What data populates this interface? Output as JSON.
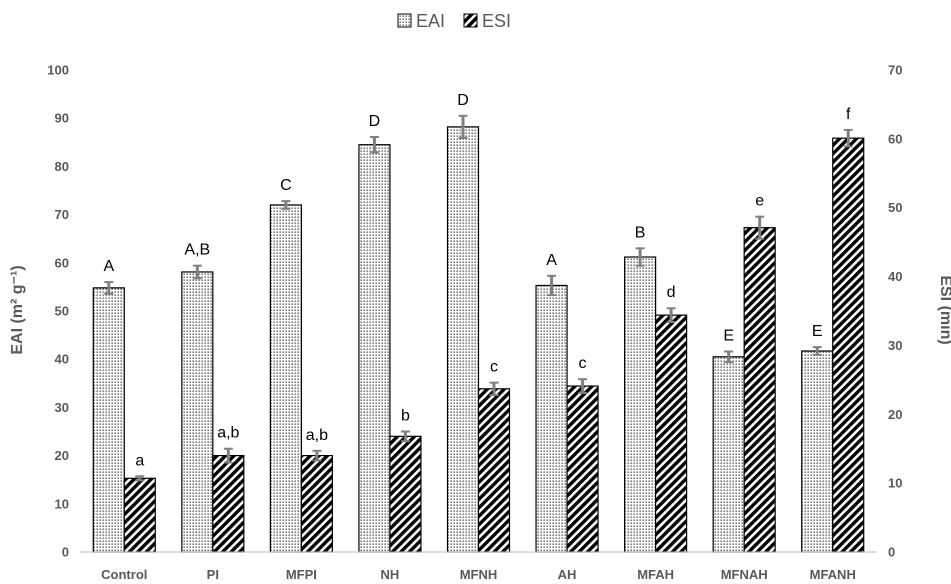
{
  "chart_data": {
    "type": "bar",
    "categories": [
      "Control",
      "PI",
      "MFPI",
      "NH",
      "MFNH",
      "AH",
      "MFAH",
      "MFNAH",
      "MFANH"
    ],
    "series": [
      {
        "name": "EAI",
        "axis": "left",
        "values": [
          54.8,
          58.1,
          72.0,
          84.5,
          88.2,
          55.3,
          61.2,
          40.5,
          41.7
        ],
        "errors": [
          1.2,
          1.3,
          0.8,
          1.6,
          2.3,
          2.0,
          1.8,
          1.1,
          0.8
        ],
        "labels": [
          "A",
          "A,B",
          "C",
          "D",
          "D",
          "A",
          "B",
          "E",
          "E"
        ]
      },
      {
        "name": "ESI",
        "axis": "right",
        "values": [
          10.7,
          14.0,
          14.0,
          16.8,
          23.7,
          24.1,
          34.4,
          47.1,
          60.1
        ],
        "errors": [
          0.3,
          1.0,
          0.7,
          0.7,
          0.9,
          1.0,
          1.0,
          1.6,
          1.2
        ],
        "labels": [
          "a",
          "a,b",
          "a,b",
          "b",
          "c",
          "c",
          "d",
          "e",
          "f"
        ]
      }
    ],
    "ylabel_left": "EAI (m² g⁻¹)",
    "ylabel_right": "ESI (min)",
    "ylim_left": [
      0,
      100
    ],
    "ylim_right": [
      0,
      70
    ],
    "yticks_left": [
      0,
      10,
      20,
      30,
      40,
      50,
      60,
      70,
      80,
      90,
      100
    ],
    "yticks_right": [
      0,
      10,
      20,
      30,
      40,
      50,
      60,
      70
    ],
    "legend_position": "top-center",
    "grid": false
  }
}
